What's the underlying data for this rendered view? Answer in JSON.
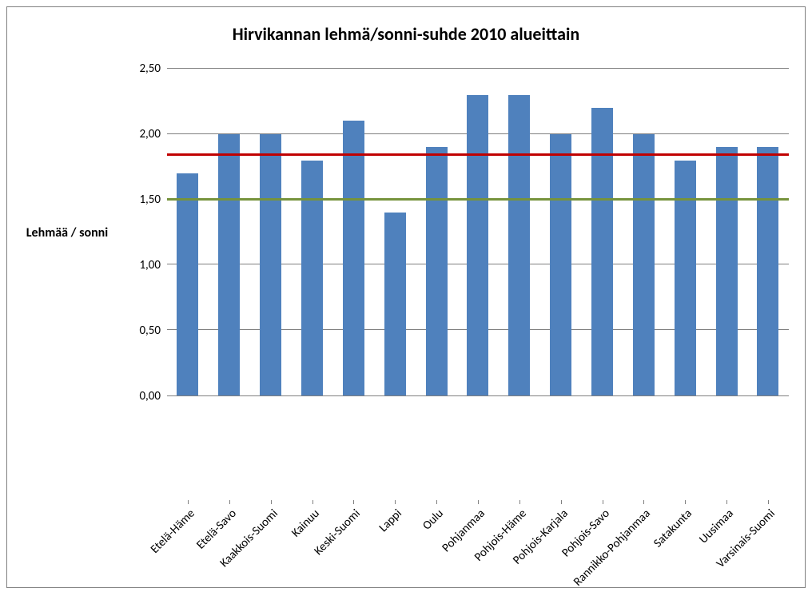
{
  "chart": {
    "type": "bar",
    "title": "Hirvikannan lehmä/sonni-suhde 2010 alueittain",
    "title_fontsize": 22,
    "ylabel": "Lehmää / sonni",
    "ylabel_fontsize": 16,
    "categories": [
      "Etelä-Häme",
      "Etelä-Savo",
      "Kaakkois-Suomi",
      "Kainuu",
      "Keski-Suomi",
      "Lappi",
      "Oulu",
      "Pohjanmaa",
      "Pohjois-Häme",
      "Pohjois-Karjala",
      "Pohjois-Savo",
      "Rannikko-Pohjanmaa",
      "Satakunta",
      "Uusimaa",
      "Varsinais-Suomi"
    ],
    "values": [
      1.7,
      2.0,
      2.0,
      1.8,
      2.1,
      1.4,
      1.9,
      2.3,
      2.3,
      2.0,
      2.2,
      2.0,
      1.8,
      1.9,
      1.9
    ],
    "bar_color": "#4f81bd",
    "ylim": [
      0,
      2.5
    ],
    "ytick_step": 0.5,
    "ytick_labels": [
      "0,00",
      "0,50",
      "1,00",
      "1,50",
      "2,00",
      "2,50"
    ],
    "grid_color": "#808080",
    "background_color": "#ffffff",
    "border_color": "#808080",
    "reference_lines": [
      {
        "value": 1.5,
        "color": "#76933c",
        "width": 3
      },
      {
        "value": 1.84,
        "color": "#c00000",
        "width": 3
      }
    ],
    "bar_width": 0.52,
    "xtick_rotation": -45,
    "tick_fontsize": 15
  }
}
